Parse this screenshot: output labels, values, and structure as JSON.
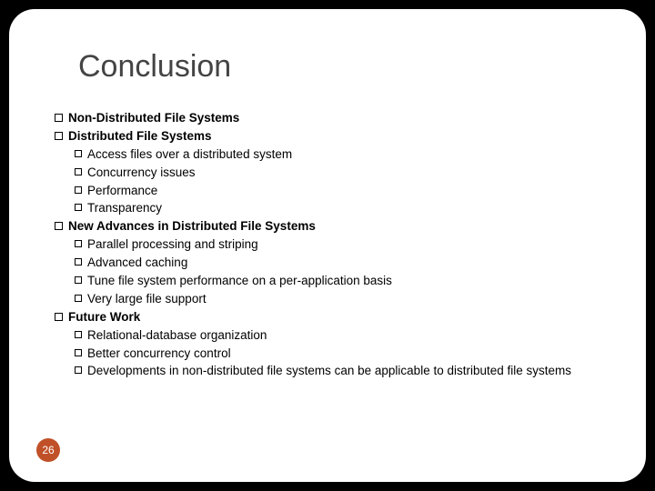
{
  "title": "Conclusion",
  "page_number": "26",
  "colors": {
    "page_badge": "#c05028",
    "title": "#444444",
    "text": "#000000",
    "background": "#ffffff",
    "outer": "#000000"
  },
  "items": {
    "a": "Non-Distributed File Systems",
    "b": "Distributed File Systems",
    "b1": "Access files over a distributed system",
    "b2": "Concurrency issues",
    "b3": "Performance",
    "b4": "Transparency",
    "c": "New Advances in Distributed File Systems",
    "c1": "Parallel processing and striping",
    "c2": "Advanced caching",
    "c3": "Tune file system performance on a per-application basis",
    "c4": "Very large file support",
    "d": "Future Work",
    "d1": "Relational-database organization",
    "d2": "Better concurrency control",
    "d3": "Developments in non-distributed file systems can be applicable to distributed file systems"
  }
}
